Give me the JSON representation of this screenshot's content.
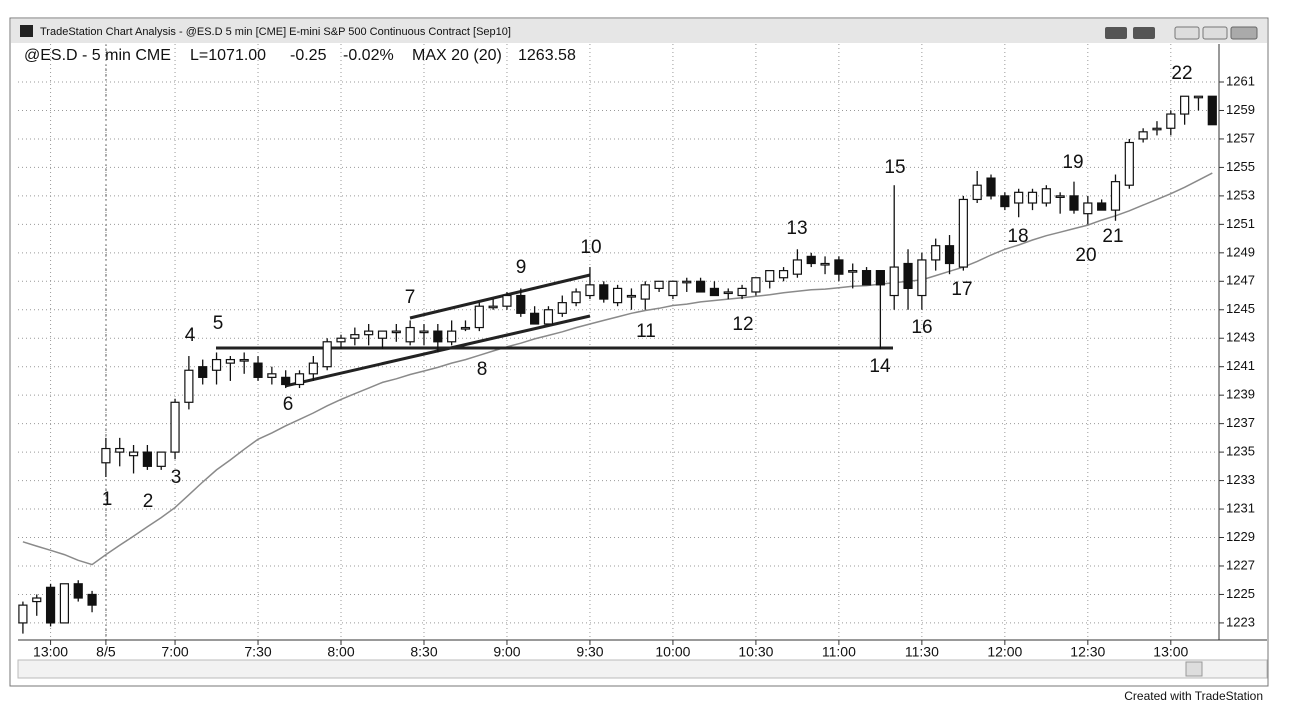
{
  "window": {
    "title": "TradeStation Chart Analysis - @ES.D 5 min [CME] E-mini S&P 500 Continuous Contract [Sep10]"
  },
  "footer": "Created with TradeStation",
  "chart_data": {
    "type": "candlestick",
    "header": [
      "@ES.D - 5 min CME",
      "L=1071.00",
      "-0.25",
      "-0.02%",
      "MAX 20 (20)",
      "1263.58"
    ],
    "categories": [
      null,
      null,
      "13:00",
      null,
      null,
      null,
      "8/5",
      null,
      null,
      null,
      null,
      "7:00",
      null,
      null,
      null,
      null,
      null,
      "7:30",
      null,
      null,
      null,
      null,
      null,
      "8:00",
      null,
      null,
      null,
      null,
      null,
      "8:30",
      null,
      null,
      null,
      null,
      null,
      "9:00",
      null,
      null,
      null,
      null,
      null,
      "9:30",
      null,
      null,
      null,
      null,
      null,
      "10:00",
      null,
      null,
      null,
      null,
      null,
      "10:30",
      null,
      null,
      null,
      null,
      null,
      "11:00",
      null,
      null,
      null,
      null,
      null,
      "11:30",
      null,
      null,
      null,
      null,
      null,
      "12:00",
      null,
      null,
      null,
      null,
      null,
      "12:30",
      null,
      null,
      null,
      null,
      null,
      "13:00",
      null,
      null,
      null
    ],
    "open": [
      1223,
      1224.5,
      1225.5,
      1223,
      1225.75,
      1225,
      1234.25,
      1235,
      1234.75,
      1235,
      1234,
      1235,
      1238.5,
      1241,
      1240.75,
      1241.25,
      1241.5,
      1241.25,
      1240.25,
      1240.25,
      1239.75,
      1240.5,
      1241,
      1242.75,
      1243,
      1243.25,
      1243,
      1243.5,
      1242.75,
      1243.5,
      1243.5,
      1242.75,
      1243.75,
      1243.75,
      1245.25,
      1245.25,
      1246,
      1244.75,
      1244,
      1244.75,
      1245.5,
      1246,
      1246.75,
      1245.5,
      1246,
      1245.75,
      1246.5,
      1246,
      1247,
      1247,
      1246.5,
      1246.25,
      1246,
      1246.25,
      1247,
      1247.25,
      1247.5,
      1248.75,
      1248.25,
      1248.5,
      1247.75,
      1247.75,
      1247.75,
      1246,
      1248.25,
      1246,
      1248.5,
      1249.5,
      1248,
      1252.75,
      1254.25,
      1253,
      1252.5,
      1252.5,
      1252.5,
      1253,
      1253,
      1251.75,
      1252.5,
      1252,
      1253.75,
      1257,
      1257.75,
      1257.75,
      1258.75,
      1260,
      1260
    ],
    "high": [
      1224.5,
      1225,
      1225.75,
      1225.75,
      1226,
      1225.25,
      1236,
      1236,
      1235.5,
      1235.5,
      1235,
      1238.75,
      1241.75,
      1241.5,
      1242,
      1241.75,
      1242,
      1241.75,
      1241,
      1240.75,
      1240.75,
      1241.75,
      1243,
      1243.25,
      1243.75,
      1244,
      1243.5,
      1244,
      1244.25,
      1244,
      1244,
      1244.25,
      1244.25,
      1245.5,
      1245.75,
      1246.25,
      1246.5,
      1245.25,
      1245.25,
      1246,
      1246.5,
      1248,
      1247,
      1246.75,
      1246.5,
      1247,
      1247,
      1247,
      1247.25,
      1247.25,
      1247,
      1246.5,
      1246.75,
      1247.25,
      1247.75,
      1248,
      1249.25,
      1249,
      1248.75,
      1248.75,
      1248.25,
      1248,
      1247.75,
      1253.75,
      1249.25,
      1249,
      1250,
      1250.25,
      1253,
      1254.75,
      1254.5,
      1253.25,
      1253.5,
      1253.5,
      1253.75,
      1253.25,
      1254,
      1253,
      1252.75,
      1254.5,
      1257,
      1257.75,
      1258.25,
      1259,
      1260,
      1260,
      1260
    ],
    "low": [
      1222.25,
      1223.5,
      1222.75,
      1223,
      1224.5,
      1223.75,
      1233.25,
      1234,
      1233.5,
      1233.75,
      1233.75,
      1234.5,
      1238,
      1239.75,
      1239.75,
      1240,
      1240.5,
      1240,
      1239.75,
      1239.5,
      1239.5,
      1240,
      1240.75,
      1242.25,
      1242.5,
      1242.5,
      1242.25,
      1242.75,
      1242.5,
      1242.5,
      1242,
      1242.5,
      1243.5,
      1243.5,
      1245,
      1245,
      1244.5,
      1244,
      1244,
      1244.5,
      1245.25,
      1245.75,
      1245.5,
      1245.25,
      1245,
      1245,
      1246.25,
      1245.75,
      1246.25,
      1246.25,
      1246.25,
      1245.75,
      1245.75,
      1246,
      1246.5,
      1247,
      1247.25,
      1248,
      1247.5,
      1247,
      1246.5,
      1246.75,
      1242.25,
      1245,
      1245,
      1245,
      1247.75,
      1247.5,
      1247.75,
      1252.5,
      1252.75,
      1252,
      1251.5,
      1252,
      1252.25,
      1251.75,
      1251.75,
      1251,
      1252,
      1251.25,
      1253.5,
      1256.75,
      1257.25,
      1257.25,
      1258,
      1259,
      1258
    ],
    "close": [
      1224.25,
      1224.75,
      1223,
      1225.75,
      1224.75,
      1224.25,
      1235.25,
      1235.25,
      1235,
      1234,
      1235,
      1238.5,
      1240.75,
      1240.25,
      1241.5,
      1241.5,
      1241.5,
      1240.25,
      1240.5,
      1239.75,
      1240.5,
      1241.25,
      1242.75,
      1243,
      1243.25,
      1243.5,
      1243.5,
      1243.5,
      1243.75,
      1243.5,
      1242.75,
      1243.5,
      1243.75,
      1245.25,
      1245.25,
      1246,
      1244.75,
      1244,
      1245,
      1245.5,
      1246.25,
      1246.75,
      1245.75,
      1246.5,
      1246,
      1246.75,
      1247,
      1247,
      1247,
      1246.25,
      1246,
      1246.25,
      1246.5,
      1247.25,
      1247.75,
      1247.75,
      1248.5,
      1248.25,
      1248.25,
      1247.5,
      1247.75,
      1246.75,
      1246.75,
      1248,
      1246.5,
      1248.5,
      1249.5,
      1248.25,
      1252.75,
      1253.75,
      1253,
      1252.25,
      1253.25,
      1253.25,
      1253.5,
      1253,
      1252,
      1252.5,
      1252,
      1254,
      1256.75,
      1257.5,
      1257.75,
      1258.75,
      1260,
      1260,
      1258
    ],
    "moving_average": {
      "color": "#8a8a8a",
      "values": [
        1228.7,
        1228.4,
        1228.1,
        1227.8,
        1227.4,
        1227.1,
        1227.8,
        1228.45,
        1229.1,
        1229.75,
        1230.4,
        1231.1,
        1232,
        1232.9,
        1233.75,
        1234.45,
        1235.2,
        1235.9,
        1236.35,
        1236.85,
        1237.3,
        1237.75,
        1238.25,
        1238.7,
        1239.1,
        1239.5,
        1239.9,
        1240.15,
        1240.45,
        1240.7,
        1240.95,
        1241.25,
        1241.5,
        1241.8,
        1242.1,
        1242.4,
        1242.65,
        1242.95,
        1243.2,
        1243.45,
        1243.75,
        1244,
        1244.25,
        1244.5,
        1244.75,
        1244.95,
        1245.1,
        1245.3,
        1245.4,
        1245.55,
        1245.65,
        1245.75,
        1245.85,
        1245.95,
        1246.05,
        1246.2,
        1246.3,
        1246.4,
        1246.45,
        1246.55,
        1246.65,
        1246.7,
        1246.8,
        1246.9,
        1247,
        1247.1,
        1247.4,
        1247.7,
        1248,
        1248.4,
        1248.85,
        1249.25,
        1249.55,
        1249.9,
        1250.2,
        1250.45,
        1250.7,
        1250.95,
        1251.3,
        1251.6,
        1251.95,
        1252.35,
        1252.75,
        1253.15,
        1253.6,
        1254.1,
        1254.6
      ]
    },
    "annotations": [
      "1",
      "2",
      "3",
      "4",
      "5",
      "6",
      "7",
      "8",
      "9",
      "10",
      "11",
      "12",
      "13",
      "14",
      "15",
      "16",
      "17",
      "18",
      "19",
      "20",
      "21",
      "22"
    ],
    "ylim": [
      1221.8,
      1263.6
    ],
    "yticks": [
      1223,
      1225,
      1227,
      1229,
      1231,
      1233,
      1235,
      1237,
      1239,
      1241,
      1243,
      1245,
      1247,
      1249,
      1251,
      1253,
      1255,
      1257,
      1259,
      1261
    ],
    "grid": true,
    "up_color": "#ffffff",
    "down_color": "#111111"
  }
}
